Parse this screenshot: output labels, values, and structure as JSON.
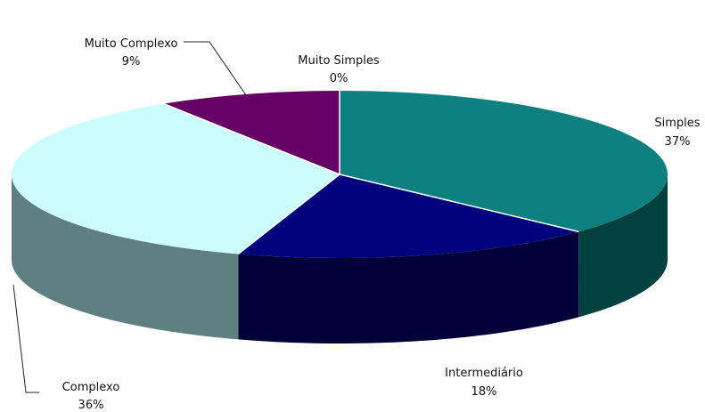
{
  "chart_data": {
    "type": "pie",
    "three_d": true,
    "start": "12 o'clock",
    "direction": "clockwise",
    "slices": [
      {
        "label": "Muito Simples",
        "percent_label": "0%",
        "value": 0,
        "color": "#6b0a5a",
        "side_color": "#3d0534"
      },
      {
        "label": "Simples",
        "percent_label": "37%",
        "value": 37,
        "color": "#0f8080",
        "side_color": "#00403f"
      },
      {
        "label": "Intermediário",
        "percent_label": "18%",
        "value": 18,
        "color": "#02007d",
        "side_color": "#010038"
      },
      {
        "label": "Complexo",
        "percent_label": "36%",
        "value": 36,
        "color": "#ccfcfc",
        "side_color": "#5f8080"
      },
      {
        "label": "Muito Complexo",
        "percent_label": "9%",
        "value": 9,
        "color": "#660066",
        "side_color": "#330033"
      }
    ]
  }
}
